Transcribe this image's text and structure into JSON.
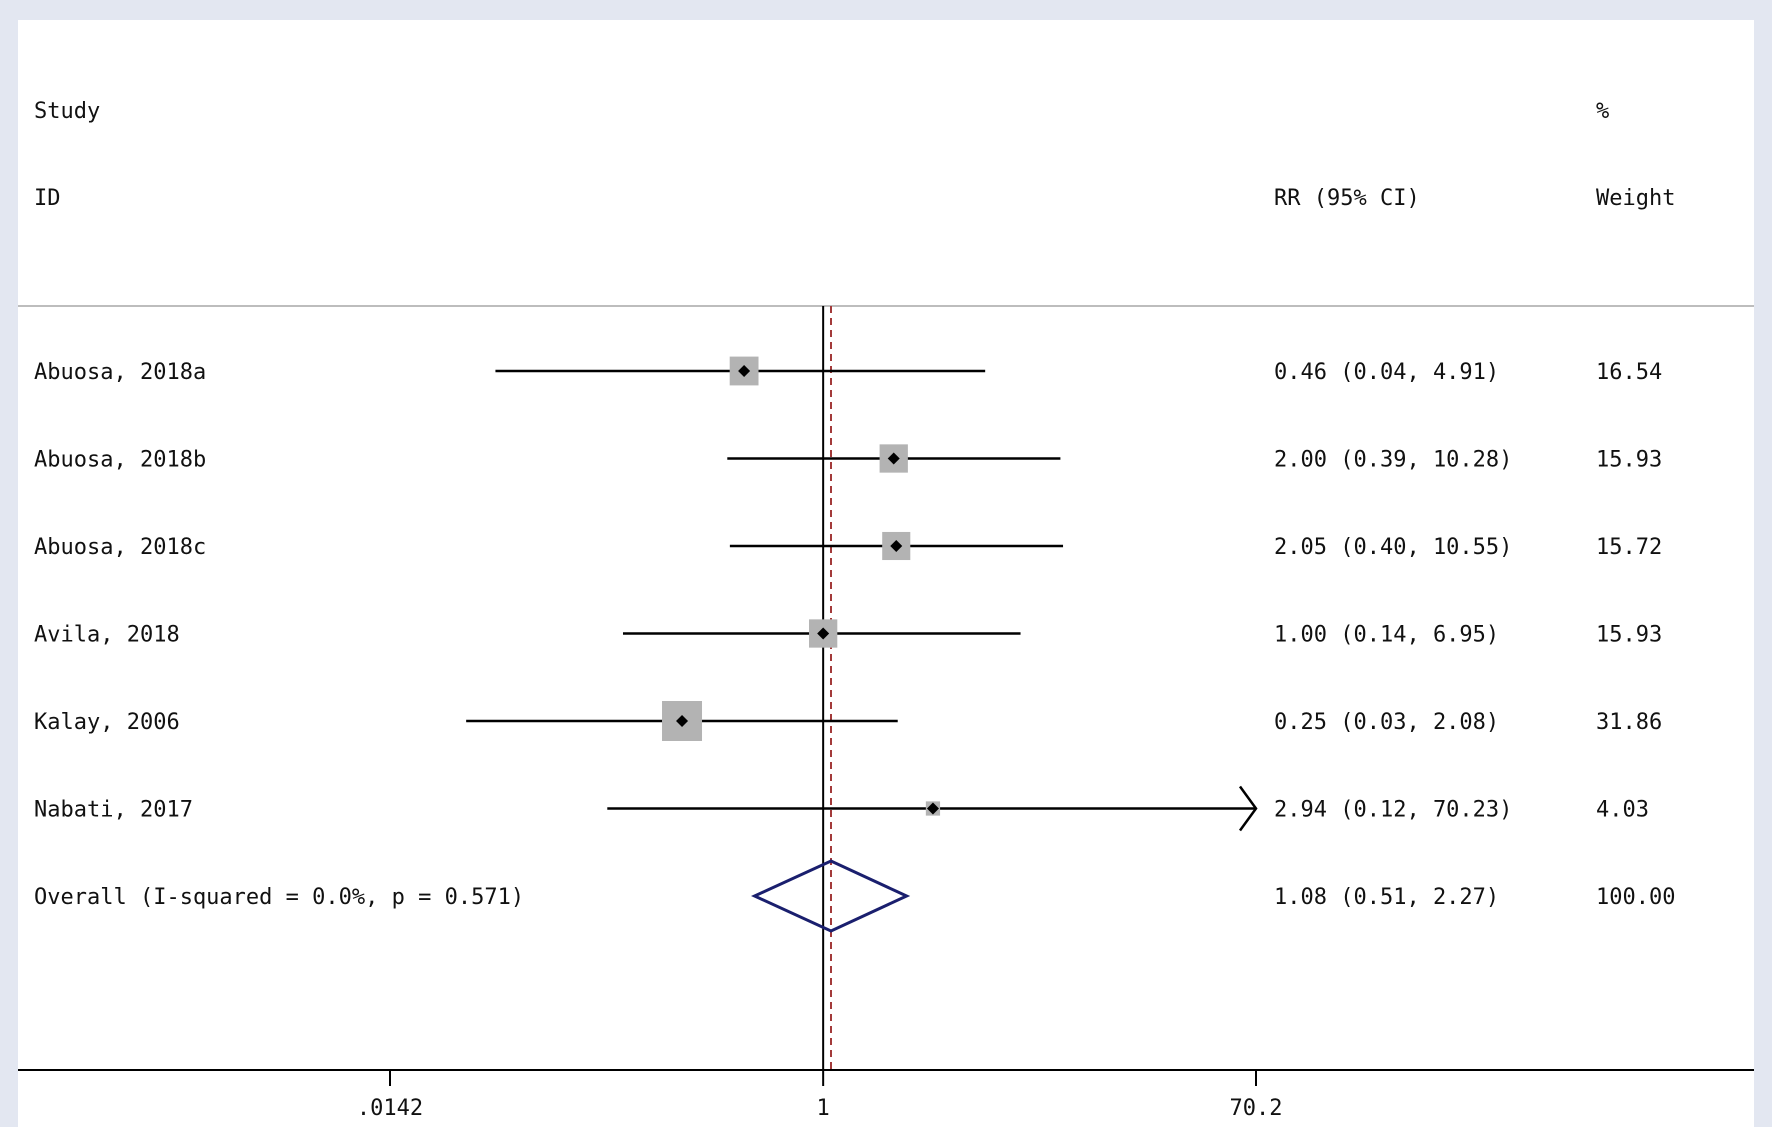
{
  "chart_data": {
    "type": "forest",
    "scale": "log",
    "header": {
      "study_line1": "Study",
      "study_line2": "ID",
      "effect_label": "RR (95% CI)",
      "weight_line1": "%",
      "weight_line2": "Weight"
    },
    "studies": [
      {
        "id": "Abuosa, 2018a",
        "rr": 0.46,
        "lower": 0.04,
        "upper": 4.91,
        "rr_text": "0.46 (0.04, 4.91)",
        "weight": 16.54,
        "weight_text": "16.54"
      },
      {
        "id": "Abuosa, 2018b",
        "rr": 2.0,
        "lower": 0.39,
        "upper": 10.28,
        "rr_text": "2.00 (0.39, 10.28)",
        "weight": 15.93,
        "weight_text": "15.93"
      },
      {
        "id": "Abuosa, 2018c",
        "rr": 2.05,
        "lower": 0.4,
        "upper": 10.55,
        "rr_text": "2.05 (0.40, 10.55)",
        "weight": 15.72,
        "weight_text": "15.72"
      },
      {
        "id": "Avila, 2018",
        "rr": 1.0,
        "lower": 0.14,
        "upper": 6.95,
        "rr_text": "1.00 (0.14, 6.95)",
        "weight": 15.93,
        "weight_text": "15.93"
      },
      {
        "id": "Kalay, 2006",
        "rr": 0.25,
        "lower": 0.03,
        "upper": 2.08,
        "rr_text": "0.25 (0.03, 2.08)",
        "weight": 31.86,
        "weight_text": "31.86"
      },
      {
        "id": "Nabati, 2017",
        "rr": 2.94,
        "lower": 0.12,
        "upper": 70.23,
        "rr_text": "2.94 (0.12, 70.23)",
        "weight": 4.03,
        "weight_text": "4.03"
      }
    ],
    "overall": {
      "label": "Overall  (I-squared = 0.0%, p = 0.571)",
      "rr": 1.08,
      "lower": 0.51,
      "upper": 2.27,
      "rr_text": "1.08 (0.51, 2.27)",
      "weight_text": "100.00"
    },
    "x_ticks": [
      {
        "value": 0.0142,
        "label": ".0142"
      },
      {
        "value": 1,
        "label": "1"
      },
      {
        "value": 70.2,
        "label": "70.2"
      }
    ],
    "xlim": [
      0.0142,
      70.2
    ],
    "null_line": 1,
    "colors": {
      "outer_background": "#e3e7f1",
      "panel": "#ffffff",
      "marker_box": "#b3b3b3",
      "line": "#000000",
      "overall_diamond": "#1a1f6e",
      "overall_line": "#a33a3a"
    }
  }
}
